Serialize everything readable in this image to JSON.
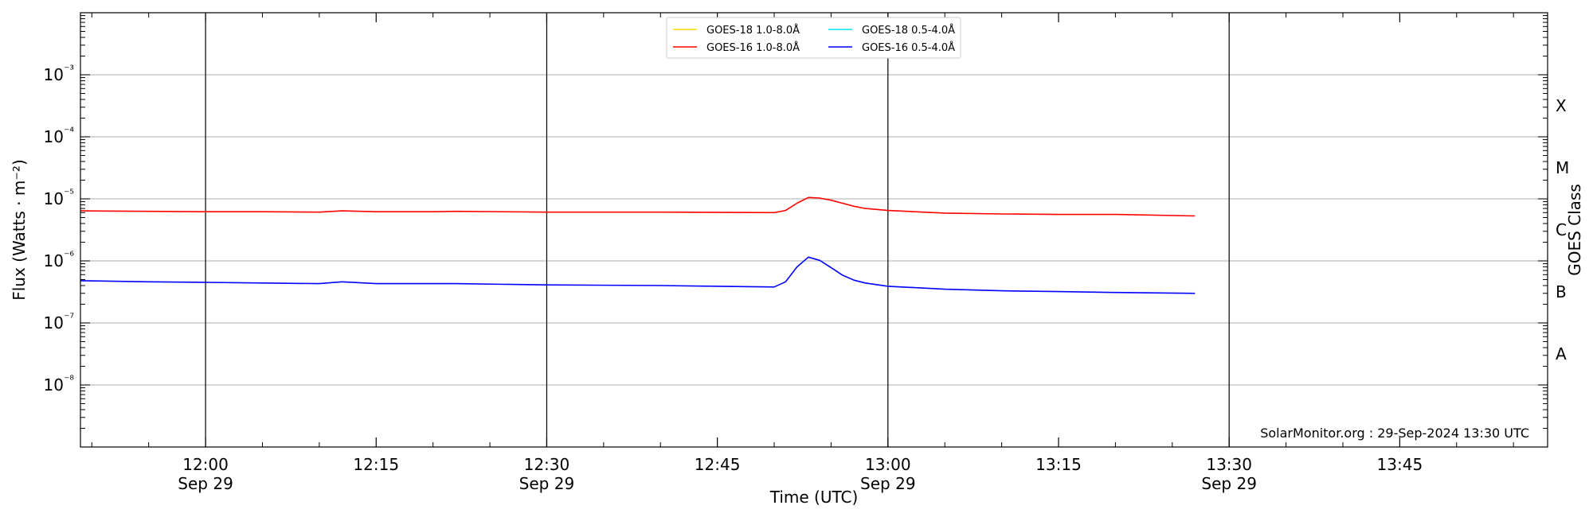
{
  "chart_data": {
    "type": "line",
    "xlabel": "Time (UTC)",
    "ylabel": "Flux (Watts · m⁻²)",
    "y2label": "GOES Class",
    "yscale": "log",
    "xlim": [
      "11:49",
      "13:58"
    ],
    "ylim": [
      1e-09,
      0.01
    ],
    "x_ticks": [
      {
        "time": "12:00",
        "label": "12:00",
        "sublabel": "Sep 29",
        "vline": true
      },
      {
        "time": "12:15",
        "label": "12:15",
        "sublabel": "",
        "vline": false
      },
      {
        "time": "12:30",
        "label": "12:30",
        "sublabel": "Sep 29",
        "vline": true
      },
      {
        "time": "12:45",
        "label": "12:45",
        "sublabel": "",
        "vline": false
      },
      {
        "time": "13:00",
        "label": "13:00",
        "sublabel": "Sep 29",
        "vline": true
      },
      {
        "time": "13:15",
        "label": "13:15",
        "sublabel": "",
        "vline": false
      },
      {
        "time": "13:30",
        "label": "13:30",
        "sublabel": "Sep 29",
        "vline": true
      },
      {
        "time": "13:45",
        "label": "13:45",
        "sublabel": "",
        "vline": false
      }
    ],
    "y_ticks": [
      {
        "exp": -3,
        "label": "10⁻³"
      },
      {
        "exp": -4,
        "label": "10⁻⁴"
      },
      {
        "exp": -5,
        "label": "10⁻⁵"
      },
      {
        "exp": -6,
        "label": "10⁻⁶"
      },
      {
        "exp": -7,
        "label": "10⁻⁷"
      },
      {
        "exp": -8,
        "label": "10⁻⁸"
      }
    ],
    "goes_classes": [
      {
        "label": "X",
        "exp": -3.5
      },
      {
        "label": "M",
        "exp": -4.5
      },
      {
        "label": "C",
        "exp": -5.5
      },
      {
        "label": "B",
        "exp": -6.5
      },
      {
        "label": "A",
        "exp": -7.5
      }
    ],
    "grid": "horizontal at decades",
    "legend_position": "top-center",
    "series": [
      {
        "name": "GOES-18 1.0-8.0Å",
        "color": "#ffd700",
        "x": [],
        "y": []
      },
      {
        "name": "GOES-18 0.5-4.0Å",
        "color": "#00e5ee",
        "x": [],
        "y": []
      },
      {
        "name": "GOES-16 1.0-8.0Å",
        "color": "#ff0000",
        "x": [
          "11:49",
          "11:55",
          "12:00",
          "12:05",
          "12:10",
          "12:12",
          "12:15",
          "12:20",
          "12:22",
          "12:30",
          "12:40",
          "12:50",
          "12:51",
          "12:52",
          "12:53",
          "12:54",
          "12:55",
          "12:56",
          "12:57",
          "12:58",
          "13:00",
          "13:05",
          "13:10",
          "13:15",
          "13:20",
          "13:27"
        ],
        "y": [
          6.4e-06,
          6.3e-06,
          6.2e-06,
          6.2e-06,
          6.1e-06,
          6.4e-06,
          6.2e-06,
          6.2e-06,
          6.3e-06,
          6.1e-06,
          6.1e-06,
          6e-06,
          6.5e-06,
          8.5e-06,
          1.05e-05,
          1.03e-05,
          9.5e-06,
          8.5e-06,
          7.6e-06,
          7e-06,
          6.5e-06,
          5.9e-06,
          5.7e-06,
          5.6e-06,
          5.6e-06,
          5.3e-06
        ]
      },
      {
        "name": "GOES-16 0.5-4.0Å",
        "color": "#0000ff",
        "x": [
          "11:49",
          "11:55",
          "12:00",
          "12:05",
          "12:10",
          "12:12",
          "12:15",
          "12:20",
          "12:22",
          "12:30",
          "12:40",
          "12:45",
          "12:50",
          "12:51",
          "12:52",
          "12:53",
          "12:54",
          "12:55",
          "12:56",
          "12:57",
          "12:58",
          "13:00",
          "13:05",
          "13:10",
          "13:15",
          "13:20",
          "13:27"
        ],
        "y": [
          4.8e-07,
          4.6e-07,
          4.5e-07,
          4.4e-07,
          4.3e-07,
          4.6e-07,
          4.3e-07,
          4.3e-07,
          4.3e-07,
          4.1e-07,
          4e-07,
          3.9e-07,
          3.8e-07,
          4.6e-07,
          8e-07,
          1.15e-06,
          1.02e-06,
          7.8e-07,
          5.9e-07,
          4.9e-07,
          4.4e-07,
          3.9e-07,
          3.5e-07,
          3.3e-07,
          3.2e-07,
          3.1e-07,
          3e-07
        ]
      }
    ],
    "annotation": "SolarMonitor.org : 29-Sep-2024 13:30 UTC"
  }
}
